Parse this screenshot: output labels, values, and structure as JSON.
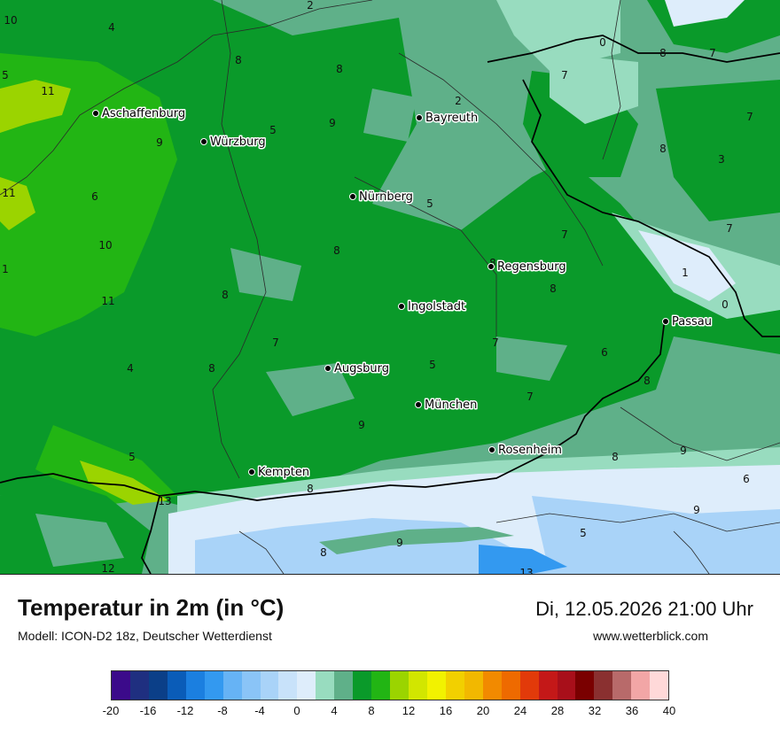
{
  "header": {
    "title": "Temperatur in 2m (in °C)",
    "model": "Modell: ICON-D2 18z, Deutscher Wetterdienst",
    "datetime": "Di, 12.05.2026 21:00 Uhr",
    "website": "www.wetterblick.com"
  },
  "cities": [
    {
      "name": "Aschaffenburg"
    },
    {
      "name": "Würzburg"
    },
    {
      "name": "Bayreuth"
    },
    {
      "name": "Nürnberg"
    },
    {
      "name": "Regensburg"
    },
    {
      "name": "Ingolstadt"
    },
    {
      "name": "Passau"
    },
    {
      "name": "Augsburg"
    },
    {
      "name": "München"
    },
    {
      "name": "Rosenheim"
    },
    {
      "name": "Kempten"
    }
  ],
  "isotherm_labels": [
    "10",
    "4",
    "2",
    "8",
    "8",
    "5",
    "11",
    "9",
    "5",
    "9",
    "2",
    "0",
    "7",
    "8",
    "7",
    "7",
    "8",
    "3",
    "11",
    "6",
    "5",
    "7",
    "7",
    "10",
    "8",
    "1",
    "8",
    "1",
    "0",
    "11",
    "8",
    "8",
    "7",
    "7",
    "4",
    "8",
    "5",
    "6",
    "8",
    "7",
    "9",
    "9",
    "5",
    "8",
    "6",
    "13",
    "8",
    "9",
    "9",
    "5",
    "12",
    "8",
    "13"
  ],
  "legend": {
    "ticks": [
      "-20",
      "-16",
      "-12",
      "-8",
      "-4",
      "0",
      "4",
      "8",
      "12",
      "16",
      "20",
      "24",
      "28",
      "32",
      "36",
      "40"
    ],
    "colors": [
      "#3b0a8a",
      "#1f2f80",
      "#0b3f88",
      "#0a5cb8",
      "#1b7fe0",
      "#3399f0",
      "#66b3f5",
      "#8ac4f7",
      "#a9d3f8",
      "#c8e2fa",
      "#deedfb",
      "#98dcbf",
      "#5fb089",
      "#0a9a2a",
      "#22b514",
      "#9bd400",
      "#d2e600",
      "#f2f200",
      "#f2d000",
      "#f2b800",
      "#f28a00",
      "#ee6a00",
      "#e23a0a",
      "#c41818",
      "#a80f1a",
      "#7a0000",
      "#8a3030",
      "#b86a6a",
      "#f2a6a6",
      "#ffd9d9"
    ],
    "palette": {
      "teal_light": "#98dcbf",
      "teal_dark": "#5fb089",
      "green": "#0a9a2a",
      "green_bright": "#22b514",
      "yellow_green": "#9bd400",
      "ice": "#deedfb",
      "sky": "#a9d3f8",
      "blue": "#3399f0"
    }
  }
}
